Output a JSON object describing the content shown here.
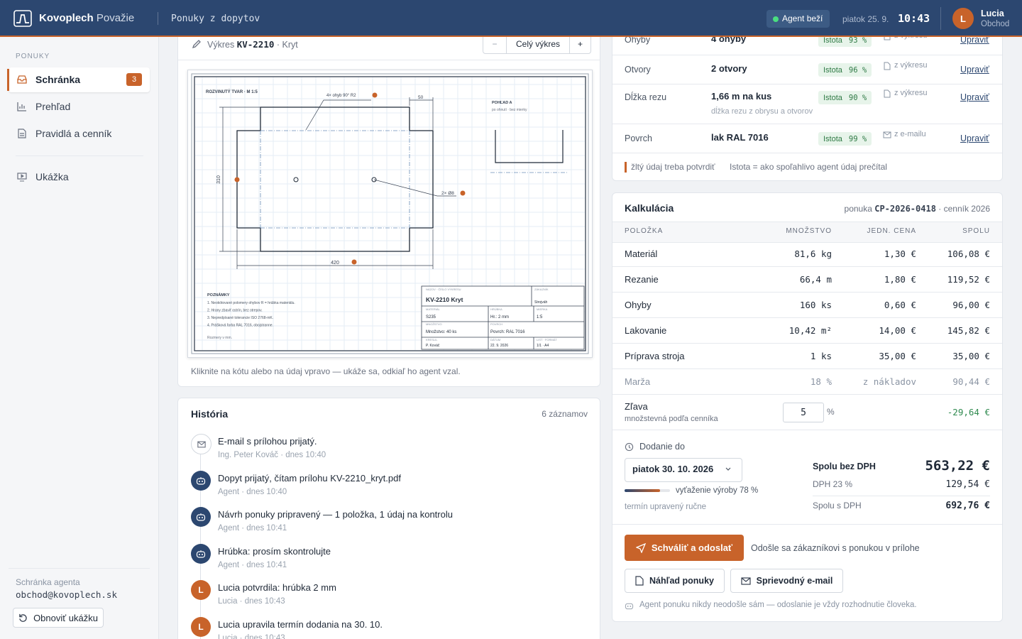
{
  "header": {
    "brand": "Kovoplech",
    "brand_suffix": "Považie",
    "section": "Ponuky z dopytov",
    "agent_status": "Agent beží",
    "date": "piatok 25. 9.",
    "time": "10:43",
    "user": {
      "initial": "L",
      "name": "Lucia",
      "role": "Obchod"
    }
  },
  "sidebar": {
    "heading": "PONUKY",
    "items": [
      {
        "label": "Schránka",
        "badge": 3
      },
      {
        "label": "Prehľad"
      },
      {
        "label": "Pravidlá a cenník"
      },
      {
        "label": "Ukážka"
      }
    ],
    "mailbox_label": "Schránka agenta",
    "mailbox": "obchod@kovoplech.sk",
    "reset": "Obnoviť ukážku"
  },
  "drawing": {
    "title_prefix": "Výkres",
    "number": "KV-2210",
    "title_suffix": "· Kryt",
    "zoom_out": "−",
    "fit": "Celý výkres",
    "zoom_in": "+",
    "caption": "Kliknite na kótu alebo na údaj vpravo — ukáže sa, odkiaľ ho agent vzal.",
    "sheet": {
      "view_label": "ROZVINUTÝ TVAR · M 1:5",
      "bend_note": "4× ohyb 90° R2",
      "flange": "50",
      "height": "310",
      "width": "420",
      "holes": "2× Ø8",
      "view_a": "POHĽAD A",
      "view_a_note": "po ohnutí · bez mierky",
      "notes_title": "POZNÁMKY",
      "notes": [
        "1. Neokótované polomery ohybov R = hrúbka materiálu.",
        "2. Hrany zbaviť ostrín, bez otrepov.",
        "3. Nepredpísané tolerancie ISO 2768-mK.",
        "4. Prášková farba RAL 7016, obojstranne."
      ],
      "units_note": "Rozmery v mm.",
      "title_block": {
        "name_label": "NÁZOV · ČÍSLO VÝKRESU",
        "name": "KV-2210 Kryt",
        "customer_label": "ZÁKAZNÍK",
        "customer": "Strojváh",
        "material_label": "MATERIÁL",
        "material": "S235",
        "thickness_label": "HRÚBKA",
        "thickness": "Hr.: 2 mm",
        "scale_label": "MIERKA",
        "scale": "1:5",
        "quantity_label": "MNOŽSTVO",
        "quantity": "Množstvo: 40 ks",
        "finish_label": "POVRCH",
        "finish": "Povrch: RAL 7016",
        "drawn_label": "KRESLIL",
        "drawn": "P. Kováč",
        "date_label": "DÁTUM",
        "date": "22. 9. 2026",
        "sheet_label": "LIST · FORMÁT",
        "sheet": "1/1 · A4"
      }
    }
  },
  "history": {
    "title": "História",
    "count": "6 záznamov",
    "items": [
      {
        "text": "E-mail s prílohou prijatý.",
        "meta": "Ing. Peter Kováč · dnes 10:40"
      },
      {
        "text": "Dopyt prijatý, čítam prílohu KV-2210_kryt.pdf",
        "meta": "Agent · dnes 10:40"
      },
      {
        "text": "Návrh ponuky pripravený — 1 položka, 1 údaj na kontrolu",
        "meta": "Agent · dnes 10:41"
      },
      {
        "text": "Hrúbka: prosím skontrolujte",
        "meta": "Agent · dnes 10:41"
      },
      {
        "text": "Lucia potvrdila: hrúbka 2 mm",
        "meta": "Lucia · dnes 10:43"
      },
      {
        "text": "Lucia upravila termín dodania na 30. 10.",
        "meta": "Lucia · dnes 10:43"
      }
    ]
  },
  "fields": {
    "confidence_label": "Istota",
    "edit": "Upraviť",
    "rows": [
      {
        "label": "Ohyby",
        "value": "4 ohyby",
        "confidence": "93 %",
        "source": "z výkresu"
      },
      {
        "label": "Otvory",
        "value": "2 otvory",
        "confidence": "96 %",
        "source": "z výkresu"
      },
      {
        "label": "Dĺžka rezu",
        "value": "1,66 m na kus",
        "note": "dĺžka rezu z obrysu a otvorov",
        "confidence": "90 %",
        "source": "z výkresu"
      },
      {
        "label": "Povrch",
        "value": "lak RAL 7016",
        "confidence": "99 %",
        "source": "z e-mailu"
      }
    ],
    "legend_warn": "žltý údaj treba potvrdiť",
    "legend_conf": "Istota = ako spoľahlivo agent údaj prečítal"
  },
  "quote": {
    "title": "Kalkulácia",
    "ref_prefix": "ponuka",
    "ref": "CP-2026-0418",
    "ref_suffix": "· cenník 2026",
    "columns": [
      "POLOŽKA",
      "MNOŽSTVO",
      "JEDN. CENA",
      "SPOLU"
    ],
    "rows": [
      [
        "Materiál",
        "81,6 kg",
        "1,30 €",
        "106,08 €"
      ],
      [
        "Rezanie",
        "66,4 m",
        "1,80 €",
        "119,52 €"
      ],
      [
        "Ohyby",
        "160 ks",
        "0,60 €",
        "96,00 €"
      ],
      [
        "Lakovanie",
        "10,42 m²",
        "14,00 €",
        "145,82 €"
      ],
      [
        "Príprava stroja",
        "1 ks",
        "35,00 €",
        "35,00 €"
      ],
      [
        "Marža",
        "18 %",
        "z nákladov",
        "90,44 €"
      ]
    ],
    "discount": {
      "label": "Zľava",
      "note": "množstevná podľa cenníka",
      "input": "5",
      "unit": "%",
      "total": "-29,64 €"
    },
    "delivery": {
      "label": "Dodanie do",
      "date": "piatok 30. 10. 2026",
      "load": 78,
      "load_label": "vyťaženie výroby 78 %",
      "note": "termín upravený ručne"
    },
    "totals": [
      {
        "label": "Spolu bez DPH",
        "value": "563,22 €"
      },
      {
        "label": "DPH 23 %",
        "value": "129,54 €"
      },
      {
        "label": "Spolu s DPH",
        "value": "692,76 €"
      }
    ],
    "approve": "Schváliť a odoslať",
    "approve_note": "Odošle sa zákazníkovi s ponukou v prílohe",
    "preview": "Náhľad ponuky",
    "email": "Sprievodný e-mail",
    "disclaimer": "Agent ponuku nikdy neodošle sám — odoslanie je vždy rozhodnutie človeka."
  }
}
